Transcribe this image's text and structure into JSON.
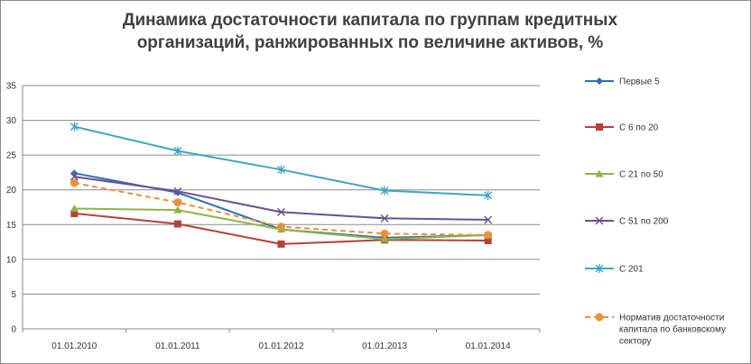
{
  "chart_data": {
    "type": "line",
    "title_lines": [
      "Динамика достаточности капитала по группам кредитных",
      "организаций, ранжированных по величине активов, %"
    ],
    "categories": [
      "01.01.2010",
      "01.01.2011",
      "01.01.2012",
      "01.01.2013",
      "01.01.2014"
    ],
    "ylim": [
      0,
      35
    ],
    "y_ticks": [
      0,
      5,
      10,
      15,
      20,
      25,
      30,
      35
    ],
    "grid": "horizontal",
    "legend_position": "right",
    "series": [
      {
        "name_lines": [
          "Первые  5"
        ],
        "color": "#2f6eb5",
        "marker": "diamond",
        "dashed": false,
        "values": [
          22.4,
          19.6,
          14.3,
          13.1,
          13.5
        ]
      },
      {
        "name_lines": [
          "С 6 по 20"
        ],
        "color": "#b5403b",
        "marker": "square",
        "dashed": false,
        "values": [
          16.6,
          15.1,
          12.2,
          12.8,
          12.7
        ]
      },
      {
        "name_lines": [
          "С 21 по 50"
        ],
        "color": "#8db547",
        "marker": "triangle",
        "dashed": false,
        "values": [
          17.3,
          17.1,
          14.3,
          12.9,
          13.5
        ]
      },
      {
        "name_lines": [
          "С 51 по 200"
        ],
        "color": "#6a4f96",
        "marker": "x",
        "dashed": false,
        "values": [
          21.9,
          19.8,
          16.8,
          15.9,
          15.7
        ]
      },
      {
        "name_lines": [
          "С 201"
        ],
        "color": "#3fa5c4",
        "marker": "star",
        "dashed": false,
        "values": [
          29.1,
          25.6,
          22.9,
          19.9,
          19.2
        ]
      },
      {
        "name_lines": [
          "Норматив достаточности",
          "капитала по банковскому",
          "сектору"
        ],
        "color": "#e8913c",
        "marker": "circle",
        "dashed": true,
        "values": [
          21.0,
          18.2,
          14.7,
          13.7,
          13.5
        ]
      }
    ]
  }
}
